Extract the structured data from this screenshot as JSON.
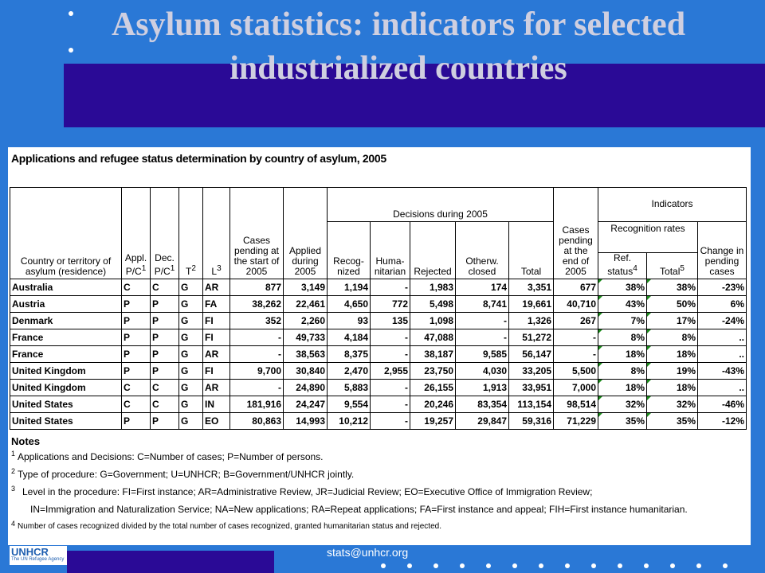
{
  "title": {
    "line1": "Asylum statistics: indicators for selected",
    "line2": "industrialized countries"
  },
  "table_caption": "Applications and refugee status determination by country of asylum, 2005",
  "headers": {
    "country": "Country or territory of asylum (residence)",
    "appl": "Appl. P/C",
    "appl_sup": "1",
    "dec": "Dec. P/C",
    "dec_sup": "1",
    "t": "T",
    "t_sup": "2",
    "l": "L",
    "l_sup": "3",
    "pending_start": "Cases pending at the start of 2005",
    "applied": "Applied during 2005",
    "decisions_group": "Decisions during 2005",
    "recognized": "Recog- nized",
    "humanitarian": "Huma- nitarian",
    "rejected": "Rejected",
    "otherwise": "Otherw. closed",
    "total": "Total",
    "pending_end": "Cases pending at the end of 2005",
    "indicators": "Indicators",
    "recognition_rates": "Recognition rates",
    "ref_status": "Ref. status",
    "ref_status_sup": "4",
    "total_rate": "Total",
    "total_rate_sup": "5",
    "change_pending": "Change in pending cases"
  },
  "rows": [
    {
      "country": "Australia",
      "appl": "C",
      "dec": "C",
      "t": "G",
      "l": "AR",
      "pending_start": "877",
      "applied": "3,149",
      "recognized": "1,194",
      "humanitarian": "-",
      "rejected": "1,983",
      "otherwise": "174",
      "total": "3,351",
      "pending_end": "677",
      "ref_status": "38%",
      "total_rate": "38%",
      "change": "-23%"
    },
    {
      "country": "Austria",
      "appl": "P",
      "dec": "P",
      "t": "G",
      "l": "FA",
      "pending_start": "38,262",
      "applied": "22,461",
      "recognized": "4,650",
      "humanitarian": "772",
      "rejected": "5,498",
      "otherwise": "8,741",
      "total": "19,661",
      "pending_end": "40,710",
      "ref_status": "43%",
      "total_rate": "50%",
      "change": "6%"
    },
    {
      "country": "Denmark",
      "appl": "P",
      "dec": "P",
      "t": "G",
      "l": "FI",
      "pending_start": "352",
      "applied": "2,260",
      "recognized": "93",
      "humanitarian": "135",
      "rejected": "1,098",
      "otherwise": "-",
      "total": "1,326",
      "pending_end": "267",
      "ref_status": "7%",
      "total_rate": "17%",
      "change": "-24%"
    },
    {
      "country": "France",
      "appl": "P",
      "dec": "P",
      "t": "G",
      "l": "FI",
      "pending_start": "-",
      "applied": "49,733",
      "recognized": "4,184",
      "humanitarian": "-",
      "rejected": "47,088",
      "otherwise": "-",
      "total": "51,272",
      "pending_end": "-",
      "ref_status": "8%",
      "total_rate": "8%",
      "change": ".."
    },
    {
      "country": "France",
      "appl": "P",
      "dec": "P",
      "t": "G",
      "l": "AR",
      "pending_start": "-",
      "applied": "38,563",
      "recognized": "8,375",
      "humanitarian": "-",
      "rejected": "38,187",
      "otherwise": "9,585",
      "total": "56,147",
      "pending_end": "-",
      "ref_status": "18%",
      "total_rate": "18%",
      "change": ".."
    },
    {
      "country": "United Kingdom",
      "appl": "P",
      "dec": "P",
      "t": "G",
      "l": "FI",
      "pending_start": "9,700",
      "applied": "30,840",
      "recognized": "2,470",
      "humanitarian": "2,955",
      "rejected": "23,750",
      "otherwise": "4,030",
      "total": "33,205",
      "pending_end": "5,500",
      "ref_status": "8%",
      "total_rate": "19%",
      "change": "-43%"
    },
    {
      "country": "United Kingdom",
      "appl": "C",
      "dec": "C",
      "t": "G",
      "l": "AR",
      "pending_start": "-",
      "applied": "24,890",
      "recognized": "5,883",
      "humanitarian": "-",
      "rejected": "26,155",
      "otherwise": "1,913",
      "total": "33,951",
      "pending_end": "7,000",
      "ref_status": "18%",
      "total_rate": "18%",
      "change": ".."
    },
    {
      "country": "United States",
      "appl": "C",
      "dec": "C",
      "t": "G",
      "l": "IN",
      "pending_start": "181,916",
      "applied": "24,247",
      "recognized": "9,554",
      "humanitarian": "-",
      "rejected": "20,246",
      "otherwise": "83,354",
      "total": "113,154",
      "pending_end": "98,514",
      "ref_status": "32%",
      "total_rate": "32%",
      "change": "-46%"
    },
    {
      "country": "United States",
      "appl": "P",
      "dec": "P",
      "t": "G",
      "l": "EO",
      "pending_start": "80,863",
      "applied": "14,993",
      "recognized": "10,212",
      "humanitarian": "-",
      "rejected": "19,257",
      "otherwise": "29,847",
      "total": "59,316",
      "pending_end": "71,229",
      "ref_status": "35%",
      "total_rate": "35%",
      "change": "-12%"
    }
  ],
  "notes": {
    "title": "Notes",
    "items": [
      {
        "num": "1",
        "text": "Applications and Decisions: C=Number of cases; P=Number of persons."
      },
      {
        "num": "2",
        "text": "Type of procedure: G=Government; U=UNHCR; B=Government/UNHCR jointly."
      },
      {
        "num": "3",
        "text": "Level in the procedure: FI=First instance; AR=Administrative Review, JR=Judicial Review; EO=Executive Office of Immigration Review;"
      },
      {
        "num": "",
        "text": "IN=Immigration and Naturalization Service; NA=New applications; RA=Repeat applications; FA=First instance and appeal; FIH=First instance humanitarian."
      },
      {
        "num": "4",
        "text": "Number of cases recognized divided by the total number of cases recognized, granted humanitarian status and rejected."
      }
    ]
  },
  "logo": {
    "name": "UNHCR",
    "tagline": "The UN Refugee Agency"
  },
  "footer_email": "stats@unhcr.org",
  "colors": {
    "background": "#2a78d6",
    "navy": "#2a0a96",
    "title": "#cfcfe0",
    "indicator_mark": "#1a8a1a"
  }
}
